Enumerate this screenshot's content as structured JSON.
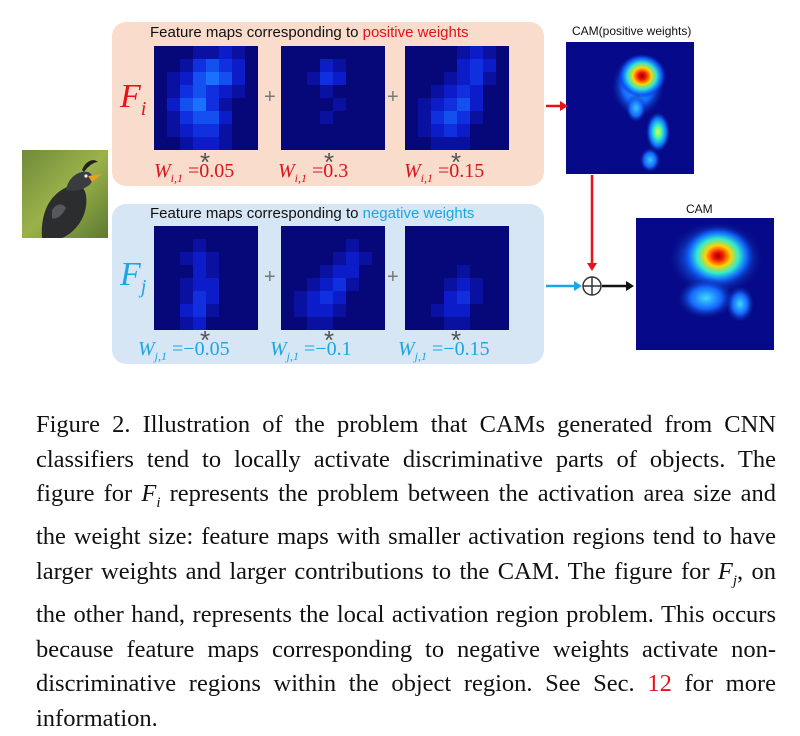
{
  "figure": {
    "positive_heading": {
      "prefix": "Feature maps corresponding to ",
      "highlight": "positive weights"
    },
    "negative_heading": {
      "prefix": "Feature maps corresponding to ",
      "highlight": "negative weights"
    },
    "row_labels": {
      "fi": {
        "letter": "F",
        "sub": "i"
      },
      "fj": {
        "letter": "F",
        "sub": "j"
      }
    },
    "plus_symbol": "+",
    "star_symbol": "*",
    "positive_weights": [
      {
        "letter": "W",
        "sub": "i,1",
        "eq": " =",
        "value": "0.05"
      },
      {
        "letter": "W",
        "sub": "i,1",
        "eq": " =",
        "value": "0.3"
      },
      {
        "letter": "W",
        "sub": "i,1",
        "eq": " =",
        "value": "0.15"
      }
    ],
    "negative_weights": [
      {
        "letter": "W",
        "sub": "j,1",
        "eq": " =",
        "value": "−0.05"
      },
      {
        "letter": "W",
        "sub": "j,1",
        "eq": " =",
        "value": "−0.1"
      },
      {
        "letter": "W",
        "sub": "j,1",
        "eq": " =",
        "value": "−0.15"
      }
    ],
    "cam_positive_title": "CAM(positive weights)",
    "cam_title": "CAM",
    "colors": {
      "positive_panel": "#f9dccc",
      "negative_panel": "#d6e6f4",
      "positive_accent": "#e8101a",
      "negative_accent": "#1aa6e6"
    }
  },
  "caption": {
    "label": "Figure 2.",
    "part1": " Illustration of the problem that CAMs generated from CNN classifiers tend to locally activate discriminative parts of objects. The figure for ",
    "fi_letter": "F",
    "fi_sub": "i",
    "part2": " represents the problem between the activation area size and the weight size: feature maps with smaller activation regions tend to have larger weights and larger contributions to the CAM. The figure for ",
    "fj_letter": "F",
    "fj_sub": "j",
    "part3": ", on the other hand, represents the local activation region problem. This occurs because feature maps corresponding to negative weights activate non-discriminative regions within the object region. See Sec. ",
    "ref": "12",
    "part4": " for more information."
  }
}
